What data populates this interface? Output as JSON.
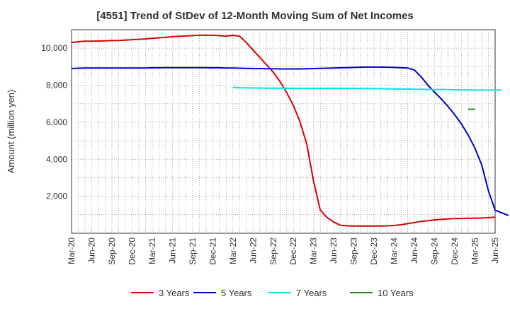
{
  "chart_data": {
    "type": "line",
    "title": "[4551]  Trend of StDev of 12-Month Moving Sum of Net Incomes",
    "xlabel": "",
    "ylabel": "Amount (million yen)",
    "ylim": [
      0,
      11000
    ],
    "yticks": [
      2000,
      4000,
      6000,
      8000,
      10000
    ],
    "ytick_labels": [
      "2,000",
      "4,000",
      "6,000",
      "8,000",
      "10,000"
    ],
    "xticks": [
      "Mar-20",
      "Jun-20",
      "Sep-20",
      "Dec-20",
      "Mar-21",
      "Jun-21",
      "Sep-21",
      "Dec-21",
      "Mar-22",
      "Jun-22",
      "Sep-22",
      "Dec-22",
      "Mar-23",
      "Jun-23",
      "Sep-23",
      "Dec-23",
      "Mar-24",
      "Jun-24",
      "Sep-24",
      "Dec-24",
      "Mar-25",
      "Jun-25"
    ],
    "grid": true,
    "legend_position": "bottom",
    "series": [
      {
        "name": "3 Years",
        "color": "#dd0000",
        "start_month": "Mar-20",
        "values": [
          10300,
          10350,
          10380,
          10380,
          10390,
          10400,
          10410,
          10420,
          10440,
          10460,
          10480,
          10500,
          10530,
          10560,
          10590,
          10620,
          10640,
          10660,
          10680,
          10700,
          10700,
          10700,
          10680,
          10650,
          10700,
          10650,
          10300,
          9900,
          9500,
          9100,
          8700,
          8200,
          7600,
          6900,
          6000,
          4800,
          2800,
          1250,
          850,
          600,
          430,
          400,
          390,
          390,
          390,
          390,
          395,
          400,
          420,
          460,
          520,
          580,
          640,
          680,
          720,
          750,
          770,
          790,
          800,
          810,
          810,
          820,
          840,
          870
        ]
      },
      {
        "name": "5 Years",
        "color": "#0000cc",
        "start_month": "Mar-20",
        "values": [
          8900,
          8920,
          8930,
          8930,
          8930,
          8930,
          8930,
          8930,
          8930,
          8930,
          8930,
          8930,
          8940,
          8940,
          8950,
          8950,
          8950,
          8950,
          8950,
          8950,
          8950,
          8940,
          8940,
          8930,
          8930,
          8920,
          8910,
          8900,
          8900,
          8890,
          8890,
          8880,
          8880,
          8880,
          8880,
          8890,
          8900,
          8910,
          8920,
          8930,
          8940,
          8950,
          8960,
          8970,
          8980,
          8980,
          8980,
          8970,
          8960,
          8940,
          8930,
          8820,
          8450,
          8000,
          7620,
          7250,
          6850,
          6400,
          5900,
          5300,
          4600,
          3700,
          2300,
          1250,
          1100,
          960
        ]
      },
      {
        "name": "7 Years",
        "color": "#00e5e5",
        "start_month": "Mar-22",
        "values": [
          7870,
          7860,
          7860,
          7850,
          7850,
          7840,
          7840,
          7840,
          7830,
          7830,
          7830,
          7830,
          7830,
          7830,
          7830,
          7830,
          7830,
          7830,
          7830,
          7820,
          7820,
          7810,
          7810,
          7800,
          7800,
          7790,
          7790,
          7780,
          7780,
          7770,
          7770,
          7760,
          7760,
          7750,
          7750,
          7750,
          7740,
          7740,
          7740,
          7740,
          7740
        ]
      },
      {
        "name": "10 Years",
        "color": "#228b22",
        "start_month": "Feb-25",
        "values": [
          6700,
          6700
        ]
      }
    ]
  }
}
